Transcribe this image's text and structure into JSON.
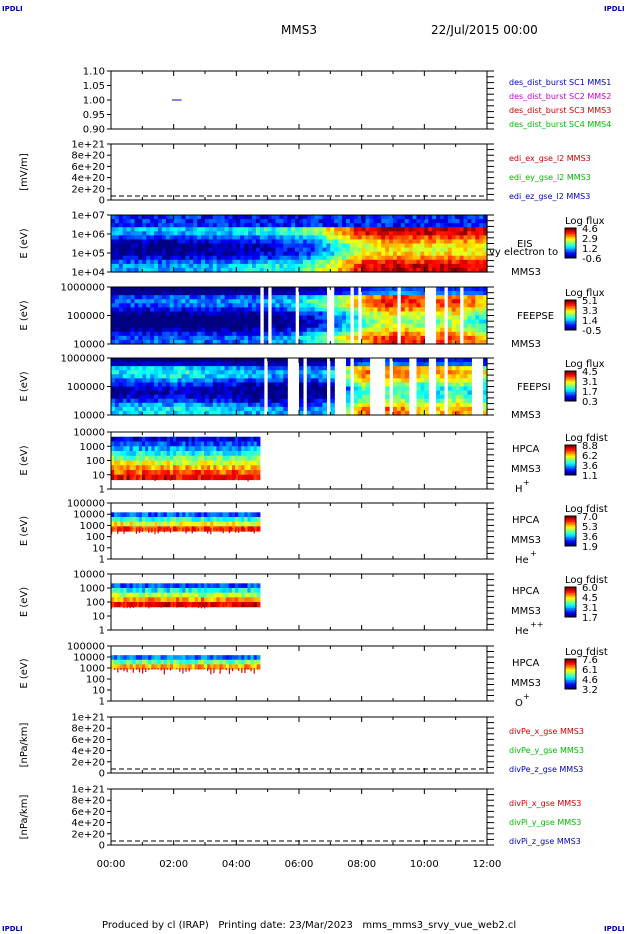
{
  "header": {
    "corner_label": "IPDLI",
    "spacecraft": "MMS3",
    "date_time": "22/Jul/2015 00:00"
  },
  "footer": {
    "text": "Produced by cl (IRAP)   Printing date: 23/Mar/2023   mms_mms3_srvy_vue_web2.cl"
  },
  "time_axis": {
    "ticks": [
      "00:00",
      "02:00",
      "04:00",
      "06:00",
      "08:00",
      "10:00",
      "12:00"
    ]
  },
  "colors": {
    "blue": "#0000bb",
    "magenta": "#cc00cc",
    "red": "#cc0000",
    "green": "#00bb00"
  },
  "chart_data": [
    {
      "type": "line",
      "panel": "burst",
      "ylim": [
        0.9,
        1.1
      ],
      "yticks": [
        "1.10",
        "1.05",
        "1.00",
        "0.95",
        "0.90"
      ],
      "ylabel": "",
      "legend": [
        {
          "text": "des_dist_burst SC1 MMS1",
          "color": "#0000bb"
        },
        {
          "text": "des_dist_burst SC2 MMS2",
          "color": "#cc00cc"
        },
        {
          "text": "des_dist_burst SC3 MMS3",
          "color": "#cc0000"
        },
        {
          "text": "des_dist_burst SC4 MMS4",
          "color": "#00bb00"
        }
      ],
      "series": [
        {
          "name": "des_dist_burst SC1 MMS1",
          "x": [
            1.95,
            2.25
          ],
          "values": [
            1.0,
            1.0
          ]
        }
      ]
    },
    {
      "type": "line",
      "panel": "edi",
      "ylabel": "[mV/m]",
      "yticks": [
        "1e+21",
        "8e+20",
        "6e+20",
        "4e+20",
        "2e+20",
        "0"
      ],
      "legend": [
        {
          "text": "edi_ex_gse_l2 MMS3",
          "color": "#cc0000"
        },
        {
          "text": "edi_ey_gse_l2 MMS3",
          "color": "#00bb00"
        },
        {
          "text": "edi_ez_gse_l2 MMS3",
          "color": "#0000bb"
        }
      ]
    },
    {
      "type": "heatmap",
      "panel": "eis",
      "ylabel": "E (eV)",
      "yticks": [
        "1e+07",
        "1e+06",
        "1e+05",
        "1e+04"
      ],
      "instrument": "EIS",
      "species": "MMS3",
      "overlap_text": "vy electron to",
      "cbar_title": "Log flux",
      "cbar_ticks": [
        "4.6",
        "2.9",
        "1.2",
        "-0.6"
      ],
      "profile_x": [
        0,
        2,
        4,
        6,
        7,
        8,
        9,
        10,
        11,
        12
      ],
      "profile_v": [
        0.25,
        0.25,
        0.3,
        0.4,
        0.6,
        0.85,
        0.92,
        0.88,
        0.9,
        0.85
      ]
    },
    {
      "type": "heatmap",
      "panel": "feeps_e",
      "ylabel": "E (eV)",
      "yticks": [
        "1000000",
        "100000",
        "10000"
      ],
      "instrument": "FEEPSE",
      "species": "MMS3",
      "cbar_title": "Log flux",
      "cbar_ticks": [
        "5.1",
        "3.3",
        "1.4",
        "-0.5"
      ],
      "profile_x": [
        0,
        2,
        4.7,
        6,
        7,
        8,
        9,
        10,
        11,
        12
      ],
      "profile_v": [
        0.15,
        0.2,
        0.2,
        0.3,
        0.45,
        0.7,
        0.85,
        0.75,
        0.8,
        0.6
      ]
    },
    {
      "type": "heatmap",
      "panel": "feeps_i",
      "ylabel": "E (eV)",
      "yticks": [
        "1000000",
        "100000",
        "10000"
      ],
      "instrument": "FEEPSI",
      "species": "MMS3",
      "cbar_title": "Log flux",
      "cbar_ticks": [
        "4.5",
        "3.1",
        "1.7",
        "0.3"
      ],
      "profile_x": [
        0,
        2,
        4.7,
        6,
        7,
        8,
        9,
        10,
        11,
        12
      ],
      "profile_v": [
        0.3,
        0.35,
        0.25,
        0.2,
        0.3,
        0.7,
        0.75,
        0.6,
        0.7,
        0.55
      ]
    },
    {
      "type": "heatmap",
      "panel": "hpca_h",
      "ylabel": "E (eV)",
      "yticks": [
        "10000",
        "1000",
        "100",
        "10",
        "1"
      ],
      "instrument": "HPCA",
      "species": "MMS3",
      "ion": "H",
      "ion_sup": "+",
      "cbar_title": "Log fdist",
      "cbar_ticks": [
        "8.8",
        "6.2",
        "3.6",
        "1.1"
      ],
      "data_end_hour": 4.75
    },
    {
      "type": "heatmap",
      "panel": "hpca_he",
      "ylabel": "E (eV)",
      "yticks": [
        "100000",
        "10000",
        "1000",
        "100",
        "10",
        "1"
      ],
      "instrument": "HPCA",
      "species": "MMS3",
      "ion": "He",
      "ion_sup": "+",
      "cbar_title": "Log fdist",
      "cbar_ticks": [
        "7.0",
        "5.3",
        "3.6",
        "1.9"
      ],
      "data_end_hour": 4.75
    },
    {
      "type": "heatmap",
      "panel": "hpca_hepp",
      "ylabel": "E (eV)",
      "yticks": [
        "10000",
        "1000",
        "100",
        "10",
        "1"
      ],
      "instrument": "HPCA",
      "species": "MMS3",
      "ion": "He",
      "ion_sup": "++",
      "cbar_title": "Log fdist",
      "cbar_ticks": [
        "6.0",
        "4.5",
        "3.1",
        "1.7"
      ],
      "data_end_hour": 4.75
    },
    {
      "type": "heatmap",
      "panel": "hpca_o",
      "ylabel": "E (eV)",
      "yticks": [
        "100000",
        "10000",
        "1000",
        "100",
        "10",
        "1"
      ],
      "instrument": "HPCA",
      "species": "MMS3",
      "ion": "O",
      "ion_sup": "+",
      "cbar_title": "Log fdist",
      "cbar_ticks": [
        "7.6",
        "6.1",
        "4.6",
        "3.2"
      ],
      "data_end_hour": 4.75
    },
    {
      "type": "line",
      "panel": "divpe",
      "ylabel": "[nPa/km]",
      "yticks": [
        "1e+21",
        "8e+20",
        "6e+20",
        "4e+20",
        "2e+20",
        "0"
      ],
      "legend": [
        {
          "text": "divPe_x_gse MMS3",
          "color": "#cc0000"
        },
        {
          "text": "divPe_y_gse MMS3",
          "color": "#00bb00"
        },
        {
          "text": "divPe_z_gse MMS3",
          "color": "#0000bb"
        }
      ]
    },
    {
      "type": "line",
      "panel": "divpi",
      "ylabel": "[nPa/km]",
      "yticks": [
        "1e+21",
        "8e+20",
        "6e+20",
        "4e+20",
        "2e+20",
        "0"
      ],
      "legend": [
        {
          "text": "divPi_x_gse MMS3",
          "color": "#cc0000"
        },
        {
          "text": "divPi_y_gse MMS3",
          "color": "#00bb00"
        },
        {
          "text": "divPi_z_gse MMS3",
          "color": "#0000bb"
        }
      ]
    }
  ]
}
